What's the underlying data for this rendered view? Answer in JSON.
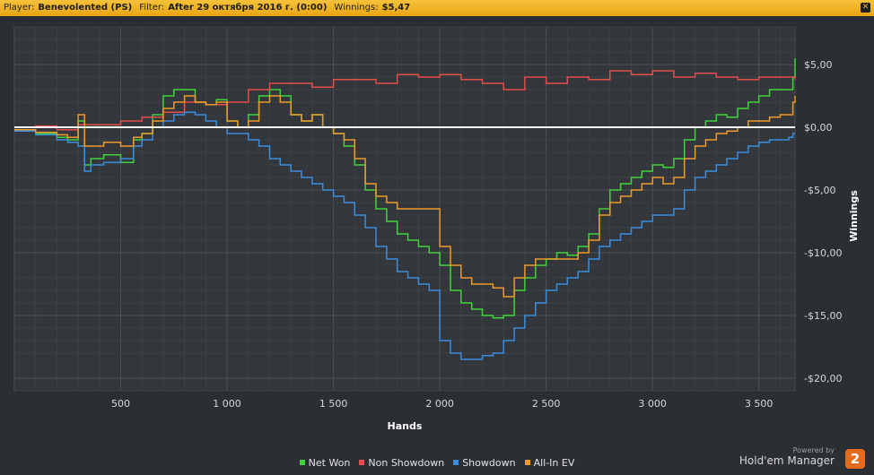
{
  "header": {
    "player_label": "Player:",
    "player": "Benevolented (PS)",
    "filter_label": "Filter:",
    "filter": "After 29 октября 2016 г. (0:00)",
    "winnings_label": "Winnings:",
    "winnings": "$5,47",
    "close_icon": "close-icon"
  },
  "branding": {
    "powered_by": "Powered by",
    "name": "Hold'em Manager",
    "badge": "2"
  },
  "chart_data": {
    "type": "line",
    "xlabel": "Hands",
    "ylabel": "Winnings",
    "xlim": [
      0,
      3670
    ],
    "ylim": [
      -21,
      8
    ],
    "x_ticks": [
      500,
      1000,
      1500,
      2000,
      2500,
      3000,
      3500
    ],
    "x_tick_labels": [
      "500",
      "1 000",
      "1 500",
      "2 000",
      "2 500",
      "3 000",
      "3 500"
    ],
    "y_ticks": [
      5,
      0,
      -5,
      -10,
      -15,
      -20
    ],
    "y_tick_labels": [
      "$5,00",
      "$0,00",
      "-$5,00",
      "-$10,00",
      "-$15,00",
      "-$20,00"
    ],
    "grid": true,
    "legend_position": "bottom",
    "zero_line_color": "#ffffff",
    "series": [
      {
        "name": "Net Won",
        "color": "#3fd43c",
        "x": [
          0,
          100,
          200,
          250,
          300,
          330,
          360,
          420,
          500,
          560,
          600,
          650,
          700,
          750,
          800,
          850,
          900,
          950,
          1000,
          1050,
          1100,
          1150,
          1200,
          1250,
          1300,
          1350,
          1400,
          1450,
          1500,
          1550,
          1600,
          1650,
          1700,
          1750,
          1800,
          1850,
          1900,
          1950,
          2000,
          2050,
          2100,
          2150,
          2200,
          2250,
          2300,
          2350,
          2400,
          2450,
          2500,
          2550,
          2600,
          2650,
          2700,
          2750,
          2800,
          2850,
          2900,
          2950,
          3000,
          3050,
          3100,
          3150,
          3200,
          3250,
          3300,
          3350,
          3400,
          3450,
          3500,
          3550,
          3600,
          3640,
          3660,
          3670
        ],
        "values": [
          -0.3,
          -0.5,
          -0.8,
          -1.0,
          0.5,
          -3.0,
          -2.5,
          -2.2,
          -2.8,
          -1.0,
          -0.5,
          1.0,
          2.5,
          3.0,
          3.0,
          2.0,
          1.8,
          2.2,
          0.5,
          0.0,
          1.0,
          2.5,
          3.0,
          2.5,
          1.0,
          0.5,
          1.0,
          0.0,
          -0.5,
          -1.5,
          -3.0,
          -5.0,
          -6.5,
          -7.5,
          -8.5,
          -9.0,
          -9.5,
          -10.0,
          -11.0,
          -13.0,
          -14.0,
          -14.5,
          -15.0,
          -15.2,
          -15.0,
          -13.0,
          -12.0,
          -11.0,
          -10.5,
          -10.0,
          -10.2,
          -9.5,
          -8.5,
          -6.5,
          -5.0,
          -4.5,
          -4.0,
          -3.5,
          -3.0,
          -3.2,
          -2.5,
          -1.0,
          0.0,
          0.5,
          1.0,
          0.8,
          1.5,
          2.0,
          2.5,
          3.0,
          3.0,
          3.0,
          4.0,
          5.5
        ]
      },
      {
        "name": "Non Showdown",
        "color": "#e84d4d",
        "x": [
          0,
          100,
          200,
          300,
          400,
          500,
          600,
          700,
          800,
          900,
          1000,
          1100,
          1200,
          1300,
          1400,
          1500,
          1600,
          1700,
          1800,
          1900,
          2000,
          2100,
          2200,
          2300,
          2400,
          2500,
          2600,
          2700,
          2800,
          2900,
          3000,
          3100,
          3200,
          3300,
          3400,
          3500,
          3600,
          3670
        ],
        "values": [
          0.0,
          0.1,
          -0.2,
          0.2,
          0.2,
          0.5,
          0.8,
          1.2,
          2.0,
          1.8,
          2.0,
          3.0,
          3.5,
          3.5,
          3.2,
          3.8,
          3.8,
          3.5,
          4.2,
          4.0,
          4.2,
          3.8,
          3.5,
          3.0,
          4.0,
          3.5,
          4.0,
          3.8,
          4.5,
          4.2,
          4.5,
          4.0,
          4.3,
          4.0,
          3.8,
          4.0,
          4.0,
          3.8
        ]
      },
      {
        "name": "Showdown",
        "color": "#3a8ede",
        "x": [
          0,
          100,
          200,
          250,
          300,
          330,
          360,
          420,
          500,
          560,
          600,
          650,
          700,
          750,
          800,
          850,
          900,
          950,
          1000,
          1050,
          1100,
          1150,
          1200,
          1250,
          1300,
          1350,
          1400,
          1450,
          1500,
          1550,
          1600,
          1650,
          1700,
          1750,
          1800,
          1850,
          1900,
          1950,
          2000,
          2050,
          2100,
          2150,
          2200,
          2250,
          2300,
          2350,
          2400,
          2450,
          2500,
          2550,
          2600,
          2650,
          2700,
          2750,
          2800,
          2850,
          2900,
          2950,
          3000,
          3050,
          3100,
          3150,
          3200,
          3250,
          3300,
          3350,
          3400,
          3450,
          3500,
          3550,
          3600,
          3640,
          3660,
          3670
        ],
        "values": [
          -0.3,
          -0.6,
          -1.0,
          -1.2,
          -1.5,
          -3.5,
          -3.0,
          -2.8,
          -2.5,
          -1.5,
          -1.0,
          0.0,
          0.5,
          1.0,
          1.2,
          1.0,
          0.5,
          0.0,
          -0.5,
          -0.5,
          -1.0,
          -1.5,
          -2.5,
          -3.0,
          -3.5,
          -4.0,
          -4.5,
          -5.0,
          -5.5,
          -6.0,
          -7.0,
          -8.0,
          -9.5,
          -10.5,
          -11.5,
          -12.0,
          -12.5,
          -13.0,
          -17.0,
          -18.0,
          -18.5,
          -18.5,
          -18.2,
          -18.0,
          -17.0,
          -16.0,
          -15.0,
          -14.0,
          -13.0,
          -12.5,
          -12.0,
          -11.5,
          -10.5,
          -9.5,
          -9.0,
          -8.5,
          -8.0,
          -7.5,
          -7.0,
          -7.0,
          -6.5,
          -5.0,
          -4.0,
          -3.5,
          -3.0,
          -2.5,
          -2.0,
          -1.5,
          -1.2,
          -1.0,
          -1.0,
          -0.8,
          -0.5,
          -0.5
        ]
      },
      {
        "name": "All-In EV",
        "color": "#ef9a2a",
        "x": [
          0,
          100,
          200,
          250,
          300,
          330,
          360,
          420,
          500,
          560,
          600,
          650,
          700,
          750,
          800,
          850,
          900,
          950,
          1000,
          1050,
          1100,
          1150,
          1200,
          1250,
          1300,
          1350,
          1400,
          1450,
          1500,
          1550,
          1600,
          1650,
          1700,
          1750,
          1800,
          1850,
          1900,
          1950,
          2000,
          2050,
          2100,
          2150,
          2200,
          2250,
          2300,
          2350,
          2400,
          2450,
          2500,
          2550,
          2600,
          2650,
          2700,
          2750,
          2800,
          2850,
          2900,
          2950,
          3000,
          3050,
          3100,
          3150,
          3200,
          3250,
          3300,
          3350,
          3400,
          3450,
          3500,
          3550,
          3600,
          3640,
          3660,
          3670
        ],
        "values": [
          -0.2,
          -0.4,
          -0.6,
          -0.8,
          1.0,
          -1.5,
          -1.5,
          -1.2,
          -1.5,
          -0.8,
          -0.5,
          0.5,
          1.5,
          2.0,
          2.5,
          2.0,
          1.8,
          2.0,
          0.5,
          0.0,
          0.5,
          2.0,
          2.5,
          2.0,
          1.0,
          0.5,
          1.0,
          0.0,
          -0.5,
          -1.0,
          -2.5,
          -4.5,
          -5.5,
          -6.0,
          -6.5,
          -6.5,
          -6.5,
          -6.5,
          -9.5,
          -11.0,
          -12.0,
          -12.5,
          -12.5,
          -12.8,
          -13.5,
          -12.0,
          -11.0,
          -10.5,
          -10.5,
          -10.5,
          -10.5,
          -10.0,
          -9.0,
          -7.0,
          -6.0,
          -5.5,
          -5.0,
          -4.5,
          -4.0,
          -4.5,
          -4.0,
          -2.5,
          -1.5,
          -1.0,
          -0.5,
          -0.3,
          0.0,
          0.5,
          0.5,
          0.8,
          1.0,
          1.0,
          2.0,
          2.5
        ]
      }
    ]
  }
}
